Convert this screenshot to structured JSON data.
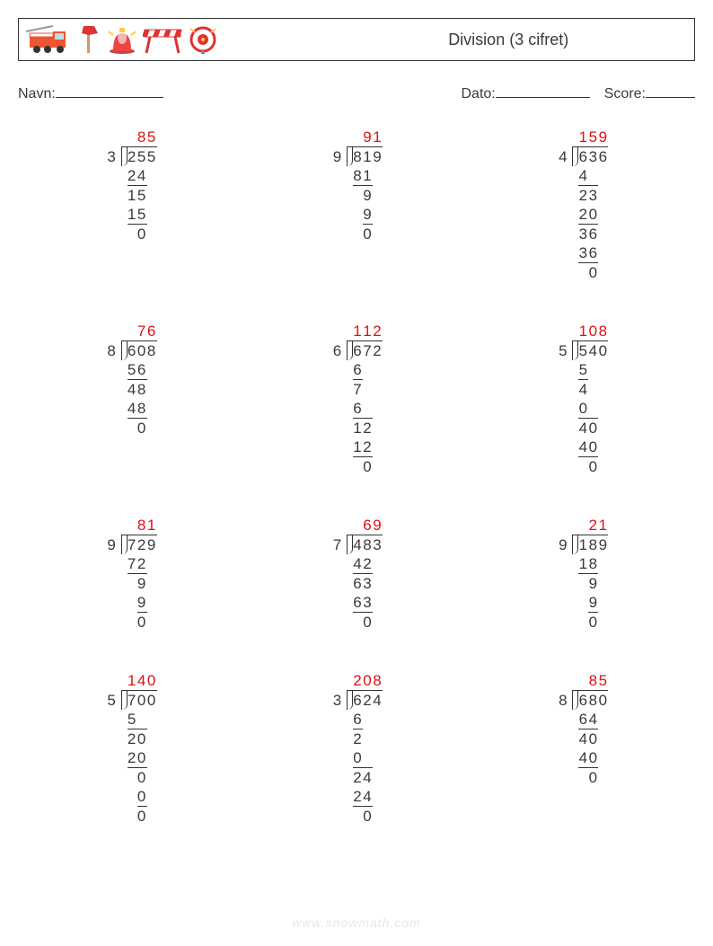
{
  "title": "Division (3 cifret)",
  "labels": {
    "name": "Navn:",
    "date": "Dato:",
    "score": "Score:"
  },
  "blankWidths": {
    "name": 120,
    "date": 105,
    "score": 55
  },
  "footer": "www.snowmath.com",
  "digitWidth": 11,
  "lineHeight": 21,
  "colors": {
    "text": "#3a3a3a",
    "answer": "#d11",
    "watermark": "#e8e8e8",
    "border": "#333"
  },
  "problems": [
    {
      "divisor": "3",
      "dividend": "255",
      "quotient": "85",
      "steps": [
        [
          "2",
          "4"
        ],
        [
          "1",
          "5"
        ],
        [
          "1",
          "5"
        ],
        [
          "0"
        ]
      ]
    },
    {
      "divisor": "9",
      "dividend": "819",
      "quotient": "91",
      "steps": [
        [
          "8",
          "1"
        ],
        [
          "9"
        ],
        [
          "9"
        ],
        [
          "0"
        ]
      ]
    },
    {
      "divisor": "4",
      "dividend": "636",
      "quotient": "159",
      "steps": [
        [
          "4"
        ],
        [
          "2",
          "3"
        ],
        [
          "2",
          "0"
        ],
        [
          "3",
          "6"
        ],
        [
          "3",
          "6"
        ],
        [
          "0"
        ]
      ]
    },
    {
      "divisor": "8",
      "dividend": "608",
      "quotient": "76",
      "steps": [
        [
          "5",
          "6"
        ],
        [
          "4",
          "8"
        ],
        [
          "4",
          "8"
        ],
        [
          "0"
        ]
      ]
    },
    {
      "divisor": "6",
      "dividend": "672",
      "quotient": "112",
      "steps": [
        [
          "6"
        ],
        [
          "7"
        ],
        [
          "6"
        ],
        [
          "1",
          "2"
        ],
        [
          "1",
          "2"
        ],
        [
          "0"
        ]
      ]
    },
    {
      "divisor": "5",
      "dividend": "540",
      "quotient": "108",
      "steps": [
        [
          "5"
        ],
        [
          "4"
        ],
        [
          "0"
        ],
        [
          "4",
          "0"
        ],
        [
          "4",
          "0"
        ],
        [
          "0"
        ]
      ]
    },
    {
      "divisor": "9",
      "dividend": "729",
      "quotient": "81",
      "steps": [
        [
          "7",
          "2"
        ],
        [
          "9"
        ],
        [
          "9"
        ],
        [
          "0"
        ]
      ]
    },
    {
      "divisor": "7",
      "dividend": "483",
      "quotient": "69",
      "steps": [
        [
          "4",
          "2"
        ],
        [
          "6",
          "3"
        ],
        [
          "6",
          "3"
        ],
        [
          "0"
        ]
      ]
    },
    {
      "divisor": "9",
      "dividend": "189",
      "quotient": "21",
      "steps": [
        [
          "1",
          "8"
        ],
        [
          "9"
        ],
        [
          "9"
        ],
        [
          "0"
        ]
      ]
    },
    {
      "divisor": "5",
      "dividend": "700",
      "quotient": "140",
      "steps": [
        [
          "5"
        ],
        [
          "2",
          "0"
        ],
        [
          "2",
          "0"
        ],
        [
          "0"
        ],
        [
          "0"
        ],
        [
          "0"
        ]
      ]
    },
    {
      "divisor": "3",
      "dividend": "624",
      "quotient": "208",
      "steps": [
        [
          "6"
        ],
        [
          "2"
        ],
        [
          "0"
        ],
        [
          "2",
          "4"
        ],
        [
          "2",
          "4"
        ],
        [
          "0"
        ]
      ]
    },
    {
      "divisor": "8",
      "dividend": "680",
      "quotient": "85",
      "steps": [
        [
          "6",
          "4"
        ],
        [
          "4",
          "0"
        ],
        [
          "4",
          "0"
        ],
        [
          "0"
        ]
      ]
    }
  ]
}
